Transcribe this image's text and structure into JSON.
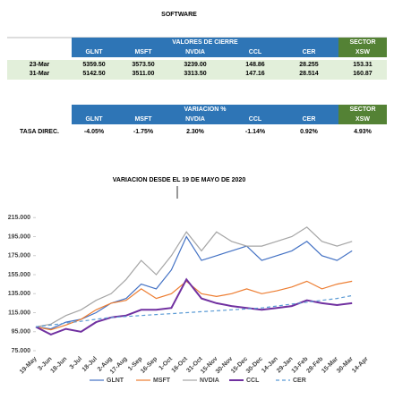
{
  "title": "SOFTWARE",
  "table1": {
    "group": "VALORES DE CIERRE",
    "sector": "SECTOR",
    "columns": [
      "GLNT",
      "MSFT",
      "NVDIA",
      "CCL",
      "CER",
      "XSW"
    ],
    "rows": [
      [
        "23-Mar",
        "5359.50",
        "3573.50",
        "3239.00",
        "148.86",
        "28.255",
        "153.31"
      ],
      [
        "31-Mar",
        "5142.50",
        "3511.00",
        "3313.50",
        "147.16",
        "28.514",
        "160.87"
      ]
    ]
  },
  "table2": {
    "group": "VARIACION %",
    "sector": "SECTOR",
    "columns": [
      "GLNT",
      "MSFT",
      "NVDIA",
      "CCL",
      "CER",
      "XSW"
    ],
    "rows": [
      [
        "TASA DIREC.",
        "-4.05%",
        "-1.75%",
        "2.30%",
        "-1.14%",
        "0.92%",
        "4.93%"
      ]
    ]
  },
  "chart_data": {
    "type": "line",
    "title": "VARIACION DESDE EL 19 DE MAYO DE 2020",
    "categories": [
      "19-May",
      "3-Jun",
      "18-Jun",
      "3-Jul",
      "18-Jul",
      "2-Aug",
      "17-Aug",
      "1-Sep",
      "16-Sep",
      "1-Oct",
      "16-Oct",
      "31-Oct",
      "15-Nov",
      "30-Nov",
      "15-Dec",
      "30-Dec",
      "14-Jan",
      "29-Jan",
      "13-Feb",
      "28-Feb",
      "15-Mar",
      "30-Mar",
      "14-Apr"
    ],
    "ylim": [
      75000,
      235000
    ],
    "yticks": [
      {
        "value": 75000,
        "label": "75.000"
      },
      {
        "value": 95000,
        "label": "95.000"
      },
      {
        "value": 115000,
        "label": "115.000"
      },
      {
        "value": 135000,
        "label": "135.000"
      },
      {
        "value": 155000,
        "label": "155.000"
      },
      {
        "value": 175000,
        "label": "175.000"
      },
      {
        "value": 195000,
        "label": "195.000"
      },
      {
        "value": 215000,
        "label": "215.000"
      }
    ],
    "series": [
      {
        "name": "GLNT",
        "color": "#4472c4",
        "values": [
          100000,
          98000,
          105000,
          108000,
          115000,
          125000,
          130000,
          145000,
          140000,
          160000,
          195000,
          170000,
          175000,
          180000,
          185000,
          170000,
          175000,
          180000,
          190000,
          175000,
          170000,
          180000,
          null
        ]
      },
      {
        "name": "MSFT",
        "color": "#ed7d31",
        "values": [
          100000,
          97000,
          102000,
          108000,
          118000,
          125000,
          128000,
          140000,
          130000,
          135000,
          148000,
          135000,
          132000,
          135000,
          140000,
          135000,
          138000,
          142000,
          148000,
          140000,
          145000,
          148000,
          null
        ]
      },
      {
        "name": "NVDIA",
        "color": "#a5a5a5",
        "values": [
          100000,
          103000,
          112000,
          118000,
          128000,
          135000,
          150000,
          170000,
          155000,
          175000,
          200000,
          180000,
          200000,
          190000,
          185000,
          185000,
          190000,
          195000,
          205000,
          190000,
          185000,
          190000,
          null
        ]
      },
      {
        "name": "CCL",
        "color": "#7030a0",
        "values": [
          100000,
          92000,
          98000,
          95000,
          105000,
          110000,
          112000,
          118000,
          118000,
          120000,
          150000,
          130000,
          125000,
          122000,
          120000,
          118000,
          120000,
          122000,
          128000,
          125000,
          123000,
          125000,
          null
        ]
      },
      {
        "name": "CER",
        "color": "#5b9bd5",
        "dashed": true,
        "values": [
          100000,
          102000,
          104000,
          106000,
          108000,
          110000,
          111000,
          112000,
          113000,
          114000,
          115000,
          116000,
          117000,
          118000,
          119000,
          120000,
          122000,
          124000,
          126000,
          128000,
          130000,
          133000,
          null
        ]
      }
    ]
  }
}
